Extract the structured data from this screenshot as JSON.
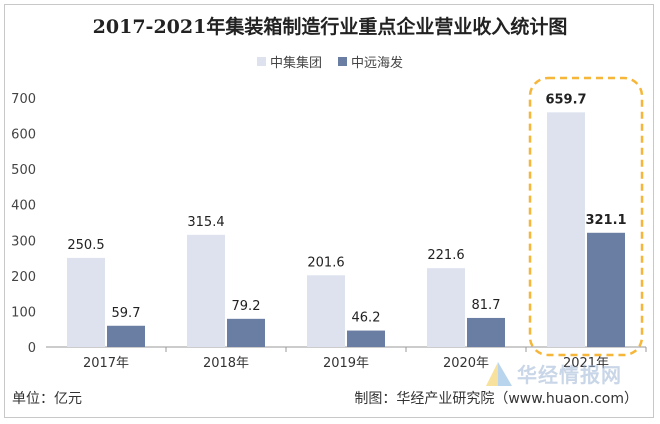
{
  "chart_data": {
    "type": "bar",
    "title": "2017-2021年集装箱制造行业重点企业营业收入统计图",
    "categories": [
      "2017年",
      "2018年",
      "2019年",
      "2020年",
      "2021年"
    ],
    "series": [
      {
        "name": "中集集团",
        "values": [
          250.5,
          315.4,
          201.6,
          221.6,
          659.7
        ],
        "color": "#dde2ee"
      },
      {
        "name": "中远海发",
        "values": [
          59.7,
          79.2,
          46.2,
          81.7,
          321.1
        ],
        "color": "#6a7da3"
      }
    ],
    "data_labels": {
      "中集集团": [
        "250.5",
        "315.4",
        "201.6",
        "221.6",
        "659.7"
      ],
      "中远海发": [
        "59.7",
        "79.2",
        "46.2",
        "81.7",
        "321.1"
      ]
    },
    "ylim": [
      0,
      700
    ],
    "yticks": [
      0,
      100,
      200,
      300,
      400,
      500,
      600,
      700
    ],
    "grid": false,
    "legend_position": "top-center",
    "highlight": {
      "category": "2021年",
      "style": "dashed-rounded-box",
      "color": "#f5b63a"
    },
    "xlabel": "",
    "ylabel": ""
  },
  "footer": {
    "unit": "单位：亿元",
    "source": "制图：华经产业研究院（www.huaon.com）"
  },
  "watermark": {
    "text": "华经情报网"
  }
}
